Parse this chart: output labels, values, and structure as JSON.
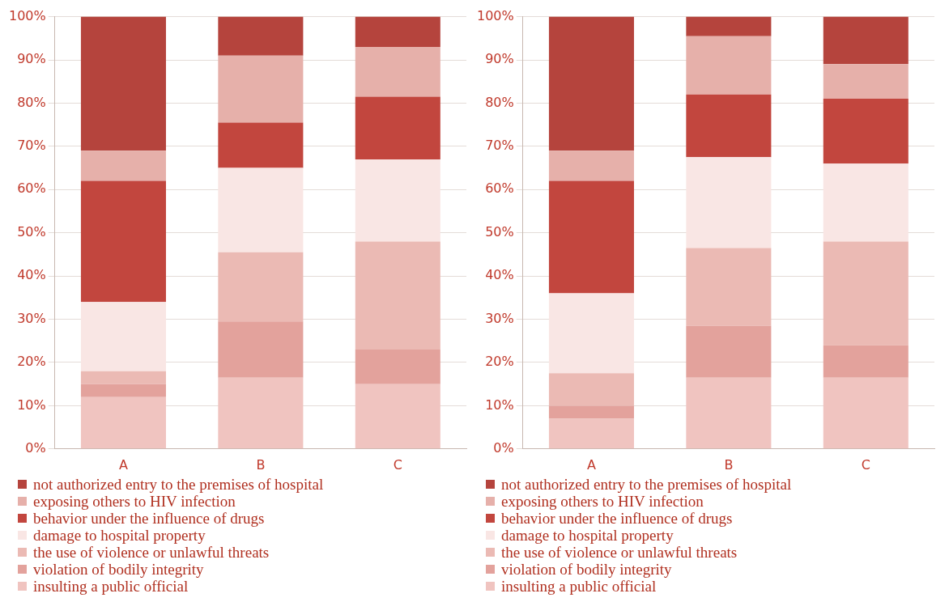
{
  "chart_data": [
    {
      "type": "bar",
      "stacked": true,
      "categories": [
        "A",
        "B",
        "C"
      ],
      "ylim": [
        0,
        100
      ],
      "yticks": [
        {
          "value": 0,
          "label": "0%"
        },
        {
          "value": 10,
          "label": "10%"
        },
        {
          "value": 20,
          "label": "20%"
        },
        {
          "value": 30,
          "label": "30%"
        },
        {
          "value": 40,
          "label": "40%"
        },
        {
          "value": 50,
          "label": "50%"
        },
        {
          "value": 60,
          "label": "60%"
        },
        {
          "value": 70,
          "label": "70%"
        },
        {
          "value": 80,
          "label": "80%"
        },
        {
          "value": 90,
          "label": "90%"
        },
        {
          "value": 100,
          "label": "100%"
        }
      ],
      "grid": "y",
      "legend": "bottom",
      "series": [
        {
          "name": "insulting a public official",
          "color": "#f0c4c0",
          "values": [
            12,
            16.5,
            15
          ]
        },
        {
          "name": "violation of bodily integrity",
          "color": "#e3a29c",
          "values": [
            3,
            13,
            8
          ]
        },
        {
          "name": "the use of violence or unlawful threats",
          "color": "#ebbab4",
          "values": [
            3,
            16,
            25
          ]
        },
        {
          "name": "damage to hospital property",
          "color": "#f9e6e4",
          "values": [
            16,
            19.5,
            19
          ]
        },
        {
          "name": "behavior under the influence of drugs",
          "color": "#c2463e",
          "values": [
            28,
            10.5,
            14.5
          ]
        },
        {
          "name": "exposing others to HIV infection",
          "color": "#e6b0aa",
          "values": [
            7,
            15.5,
            11.5
          ]
        },
        {
          "name": "not authorized entry to the premises of hospital",
          "color": "#b5443d",
          "values": [
            31,
            9,
            7
          ]
        }
      ]
    },
    {
      "type": "bar",
      "stacked": true,
      "categories": [
        "A",
        "B",
        "C"
      ],
      "ylim": [
        0,
        100
      ],
      "yticks": [
        {
          "value": 0,
          "label": "0%"
        },
        {
          "value": 10,
          "label": "10%"
        },
        {
          "value": 20,
          "label": "20%"
        },
        {
          "value": 30,
          "label": "30%"
        },
        {
          "value": 40,
          "label": "40%"
        },
        {
          "value": 50,
          "label": "50%"
        },
        {
          "value": 60,
          "label": "60%"
        },
        {
          "value": 70,
          "label": "70%"
        },
        {
          "value": 80,
          "label": "80%"
        },
        {
          "value": 90,
          "label": "90%"
        },
        {
          "value": 100,
          "label": "100%"
        }
      ],
      "grid": "y",
      "legend": "bottom",
      "series": [
        {
          "name": "insulting a public official",
          "color": "#f0c4c0",
          "values": [
            7,
            16.5,
            16.5
          ]
        },
        {
          "name": "violation of bodily integrity",
          "color": "#e3a29c",
          "values": [
            3,
            12,
            7.5
          ]
        },
        {
          "name": "the use of violence or unlawful threats",
          "color": "#ebbab4",
          "values": [
            7.5,
            18,
            24
          ]
        },
        {
          "name": "damage to hospital property",
          "color": "#f9e6e4",
          "values": [
            18.5,
            21,
            18
          ]
        },
        {
          "name": "behavior under the influence of drugs",
          "color": "#c2463e",
          "values": [
            26,
            14.5,
            15
          ]
        },
        {
          "name": "exposing others to HIV infection",
          "color": "#e6b0aa",
          "values": [
            7,
            13.5,
            8
          ]
        },
        {
          "name": "not authorized entry to the premises of hospital",
          "color": "#b5443d",
          "values": [
            31,
            4.5,
            11
          ]
        }
      ]
    }
  ]
}
